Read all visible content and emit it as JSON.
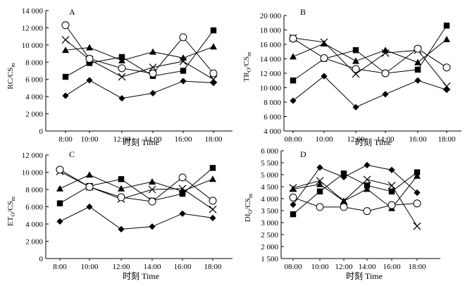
{
  "figure": {
    "x_title": "时刻 Time",
    "x_ticks": [
      "8:00",
      "10:00",
      "12:00",
      "14:00",
      "16:00",
      "18:00"
    ],
    "x_ticks_padded": [
      "08:00",
      "10:00",
      "12:00",
      "14:00",
      "16:00",
      "18:00"
    ]
  },
  "chart_data": [
    {
      "type": "line",
      "panel": "A",
      "ylabel": "RC/CS_m",
      "ylabel_main": "RC/CS",
      "ylabel_sub": "m",
      "ylim": [
        0,
        14000
      ],
      "yticks": [
        "0",
        "2 000",
        "4 000",
        "6 000",
        "8 000",
        "10 000",
        "12 000",
        "14 000"
      ],
      "xlabels": [
        "8:00",
        "10:00",
        "12:00",
        "14:00",
        "16:00",
        "18:00"
      ],
      "series": [
        {
          "marker": "diamond",
          "values": [
            4100,
            5900,
            3800,
            4400,
            5800,
            5600
          ]
        },
        {
          "marker": "square",
          "values": [
            6300,
            7900,
            8600,
            6400,
            7000,
            11700
          ]
        },
        {
          "marker": "triangle",
          "values": [
            9400,
            9700,
            8200,
            9200,
            8500,
            9800
          ]
        },
        {
          "marker": "cross",
          "values": [
            10600,
            8300,
            6300,
            7400,
            8100,
            6000
          ]
        },
        {
          "marker": "circle",
          "values": [
            12300,
            8400,
            7300,
            6700,
            10900,
            6700
          ]
        }
      ]
    },
    {
      "type": "line",
      "panel": "B",
      "ylabel": "TR_O/CS_m",
      "ylabel_main": "TR",
      "ylabel_mid": "/CS",
      "ylabel_sub1": "O",
      "ylabel_sub2": "m",
      "ylim": [
        4000,
        20000
      ],
      "yticks": [
        "4 000",
        "6 000",
        "8 000",
        "10 000",
        "12 000",
        "14 000",
        "16 000",
        "18 000",
        "20 000"
      ],
      "xlabels": [
        "08:00",
        "10:00",
        "12:00",
        "14:00",
        "16:00",
        "18:00"
      ],
      "series": [
        {
          "marker": "diamond",
          "values": [
            8200,
            11600,
            7300,
            9100,
            11000,
            9700
          ]
        },
        {
          "marker": "square",
          "values": [
            11000,
            14000,
            15200,
            12000,
            12500,
            18600
          ]
        },
        {
          "marker": "triangle",
          "values": [
            14300,
            16100,
            13700,
            15200,
            13500,
            16700
          ]
        },
        {
          "marker": "cross",
          "values": [
            16900,
            16300,
            11900,
            14800,
            15200,
            10200
          ]
        },
        {
          "marker": "circle",
          "values": [
            16800,
            14100,
            12600,
            12000,
            15400,
            12800
          ]
        }
      ]
    },
    {
      "type": "line",
      "panel": "C",
      "ylabel": "ET_O/CS_m",
      "ylabel_main": "ET",
      "ylabel_mid": "/CS",
      "ylabel_sub1": "O",
      "ylabel_sub2": "m",
      "ylim": [
        0,
        12000
      ],
      "yticks": [
        "0",
        "2 000",
        "4 000",
        "6 000",
        "8 000",
        "10 000",
        "12 000"
      ],
      "xlabels": [
        "8:00",
        "10:00",
        "12:00",
        "14:00",
        "16:00",
        "18:00"
      ],
      "series": [
        {
          "marker": "diamond",
          "values": [
            4300,
            6000,
            3400,
            3700,
            5200,
            4700
          ]
        },
        {
          "marker": "square",
          "values": [
            6400,
            8400,
            9200,
            6700,
            7500,
            10500
          ]
        },
        {
          "marker": "triangle",
          "values": [
            8100,
            9700,
            8100,
            8900,
            7800,
            9200
          ]
        },
        {
          "marker": "cross",
          "values": [
            10100,
            8300,
            6900,
            8000,
            8100,
            5700
          ]
        },
        {
          "marker": "circle",
          "values": [
            10300,
            8300,
            7100,
            6600,
            9400,
            6700
          ]
        }
      ]
    },
    {
      "type": "line",
      "panel": "D",
      "ylabel": "DI_O/CS_m",
      "ylabel_main": "DI",
      "ylabel_mid": "/CS",
      "ylabel_sub1": "O",
      "ylabel_sub2": "m",
      "ylim": [
        1500,
        6000
      ],
      "yticks": [
        "1 500",
        "2 000",
        "2 500",
        "3 000",
        "3 500",
        "4 000",
        "4 500",
        "5 000",
        "5 500",
        "6 000"
      ],
      "xlabels": [
        "08:00",
        "10:00",
        "12:00",
        "14:00",
        "16:00",
        "18:00"
      ],
      "series": [
        {
          "marker": "diamond",
          "values": [
            3750,
            5300,
            4900,
            5400,
            5200,
            4250
          ]
        },
        {
          "marker": "square",
          "values": [
            3350,
            4300,
            5050,
            4550,
            4300,
            5100
          ]
        },
        {
          "marker": "triangle",
          "values": [
            4400,
            4600,
            3900,
            4400,
            3600,
            4950
          ]
        },
        {
          "marker": "cross",
          "values": [
            4450,
            4750,
            3900,
            4800,
            4550,
            2850
          ]
        },
        {
          "marker": "circle",
          "values": [
            4050,
            3650,
            3650,
            3480,
            3730,
            3800
          ]
        }
      ]
    }
  ]
}
